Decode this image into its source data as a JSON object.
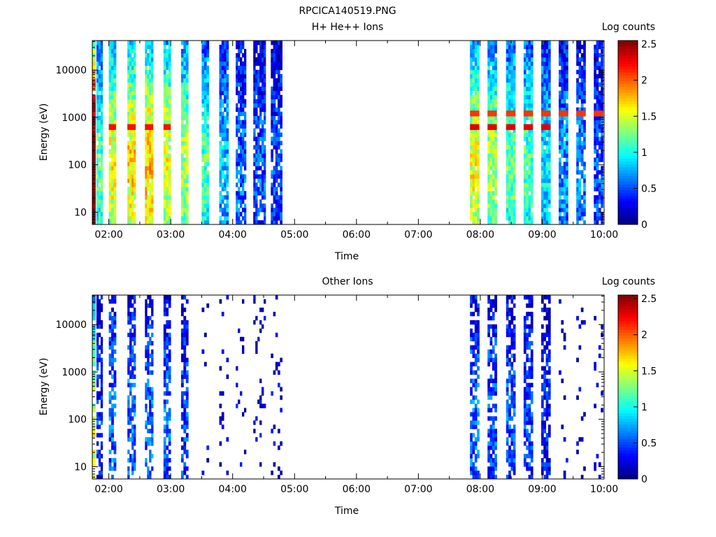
{
  "page_title": "RPCICA140519.PNG",
  "chart_data": [
    {
      "type": "heatmap",
      "title": "H+ He++ Ions",
      "xlabel": "Time",
      "ylabel": "Energy (eV)",
      "x_scale": "time",
      "y_scale": "log",
      "xlim": [
        "01:44",
        "10:00"
      ],
      "ylim": [
        5.5,
        42000
      ],
      "x_ticks": [
        "02:00",
        "03:00",
        "04:00",
        "05:00",
        "06:00",
        "07:00",
        "08:00",
        "09:00",
        "10:00"
      ],
      "y_ticks": [
        {
          "value": 10,
          "label": "10"
        },
        {
          "value": 100,
          "label": "100"
        },
        {
          "value": 1000,
          "label": "1000"
        },
        {
          "value": 10000,
          "label": "10000"
        }
      ],
      "colorbar": {
        "label": "Log counts",
        "min": 0,
        "max": 2.55,
        "ticks": [
          "0",
          "0.5",
          "1",
          "1.5",
          "2",
          "2.5"
        ],
        "colormap": "jet"
      },
      "data_gap": [
        "04:50",
        "07:50"
      ],
      "sweep_columns": [
        {
          "start": "01:44",
          "end": "01:47",
          "level": 2.4
        },
        {
          "start": "01:48",
          "end": "01:54",
          "level": 1.0
        },
        {
          "start": "02:00",
          "end": "02:07",
          "level": 1.35
        },
        {
          "start": "02:18",
          "end": "02:26",
          "level": 1.45
        },
        {
          "start": "02:35",
          "end": "02:43",
          "level": 1.5
        },
        {
          "start": "02:53",
          "end": "03:00",
          "level": 1.35
        },
        {
          "start": "03:10",
          "end": "03:17",
          "level": 1.2
        },
        {
          "start": "03:30",
          "end": "03:37",
          "level": 1.0
        },
        {
          "start": "03:47",
          "end": "03:56",
          "level": 0.7
        },
        {
          "start": "04:03",
          "end": "04:13",
          "level": 0.5
        },
        {
          "start": "04:20",
          "end": "04:32",
          "level": 0.45
        },
        {
          "start": "04:37",
          "end": "04:48",
          "level": 0.4
        },
        {
          "start": "07:50",
          "end": "07:59",
          "level": 1.35
        },
        {
          "start": "08:07",
          "end": "08:16",
          "level": 1.2
        },
        {
          "start": "08:25",
          "end": "08:34",
          "level": 1.05
        },
        {
          "start": "08:42",
          "end": "08:51",
          "level": 1.0
        },
        {
          "start": "08:59",
          "end": "09:08",
          "level": 0.8
        },
        {
          "start": "09:16",
          "end": "09:25",
          "level": 0.6
        },
        {
          "start": "09:33",
          "end": "09:42",
          "level": 0.55
        },
        {
          "start": "09:50",
          "end": "09:59",
          "level": 0.45
        }
      ],
      "bright_lines": [
        {
          "energy": 620,
          "from": "02:00",
          "to": "03:00",
          "level": 2.2
        },
        {
          "energy": 620,
          "from": "07:50",
          "to": "09:10",
          "level": 2.3
        },
        {
          "energy": 1200,
          "from": "07:50",
          "to": "10:00",
          "level": 2.1
        }
      ]
    },
    {
      "type": "heatmap",
      "title": "Other Ions",
      "xlabel": "Time",
      "ylabel": "Energy (eV)",
      "x_scale": "time",
      "y_scale": "log",
      "xlim": [
        "01:44",
        "10:00"
      ],
      "ylim": [
        5.5,
        42000
      ],
      "x_ticks": [
        "02:00",
        "03:00",
        "04:00",
        "05:00",
        "06:00",
        "07:00",
        "08:00",
        "09:00",
        "10:00"
      ],
      "y_ticks": [
        {
          "value": 10,
          "label": "10"
        },
        {
          "value": 100,
          "label": "100"
        },
        {
          "value": 1000,
          "label": "1000"
        },
        {
          "value": 10000,
          "label": "10000"
        }
      ],
      "colorbar": {
        "label": "Log counts",
        "min": 0,
        "max": 2.55,
        "ticks": [
          "0",
          "0.5",
          "1",
          "1.5",
          "2",
          "2.5"
        ],
        "colormap": "jet"
      },
      "data_gap": [
        "04:50",
        "07:50"
      ],
      "sweep_columns": [
        {
          "start": "01:44",
          "end": "01:47",
          "level": 1.3
        },
        {
          "start": "01:48",
          "end": "01:54",
          "level": 0.35
        },
        {
          "start": "02:00",
          "end": "02:07",
          "level": 0.5
        },
        {
          "start": "02:18",
          "end": "02:26",
          "level": 0.5
        },
        {
          "start": "02:35",
          "end": "02:43",
          "level": 0.5
        },
        {
          "start": "02:53",
          "end": "03:00",
          "level": 0.45
        },
        {
          "start": "03:10",
          "end": "03:17",
          "level": 0.4
        },
        {
          "start": "03:30",
          "end": "03:37",
          "level": 0.15
        },
        {
          "start": "03:47",
          "end": "03:56",
          "level": 0.15
        },
        {
          "start": "04:03",
          "end": "04:13",
          "level": 0.15
        },
        {
          "start": "04:20",
          "end": "04:32",
          "level": 0.15
        },
        {
          "start": "04:37",
          "end": "04:48",
          "level": 0.15
        },
        {
          "start": "07:50",
          "end": "07:59",
          "level": 0.5
        },
        {
          "start": "08:07",
          "end": "08:16",
          "level": 0.45
        },
        {
          "start": "08:25",
          "end": "08:34",
          "level": 0.45
        },
        {
          "start": "08:42",
          "end": "08:51",
          "level": 0.4
        },
        {
          "start": "08:59",
          "end": "09:08",
          "level": 0.3
        },
        {
          "start": "09:16",
          "end": "09:25",
          "level": 0.15
        },
        {
          "start": "09:33",
          "end": "09:42",
          "level": 0.15
        },
        {
          "start": "09:50",
          "end": "09:59",
          "level": 0.15
        }
      ],
      "bright_lines": []
    }
  ]
}
